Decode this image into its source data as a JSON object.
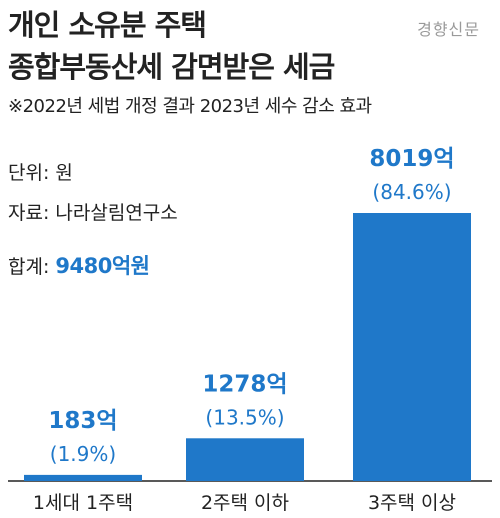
{
  "header": {
    "title_line1": "개인 소유분 주택",
    "title_line2": "종합부동산세 감면받은 세금",
    "subtitle": "※2022년 세법 개정 결과 2023년 세수 감소 효과",
    "source_logo": "경향신문"
  },
  "meta": {
    "unit": "단위: 원",
    "source": "자료: 나라살림연구소",
    "total_label": "합계: ",
    "total_value": "9480억원"
  },
  "colors": {
    "bar": "#1f78c9",
    "value_text": "#1f78c9",
    "axis": "#222222"
  },
  "chart_data": {
    "type": "bar",
    "categories": [
      "1세대 1주택",
      "2주택 이하",
      "3주택 이상"
    ],
    "values": [
      183,
      1278,
      8019
    ],
    "value_labels": [
      "183억",
      "1278억",
      "8019억"
    ],
    "percent_labels": [
      "(1.9%)",
      "(13.5%)",
      "(84.6%)"
    ],
    "percentages": [
      1.9,
      13.5,
      84.6
    ],
    "ylim": [
      0,
      8019
    ],
    "title": "",
    "xlabel": "",
    "ylabel": "",
    "grid": false,
    "legend": "none"
  }
}
